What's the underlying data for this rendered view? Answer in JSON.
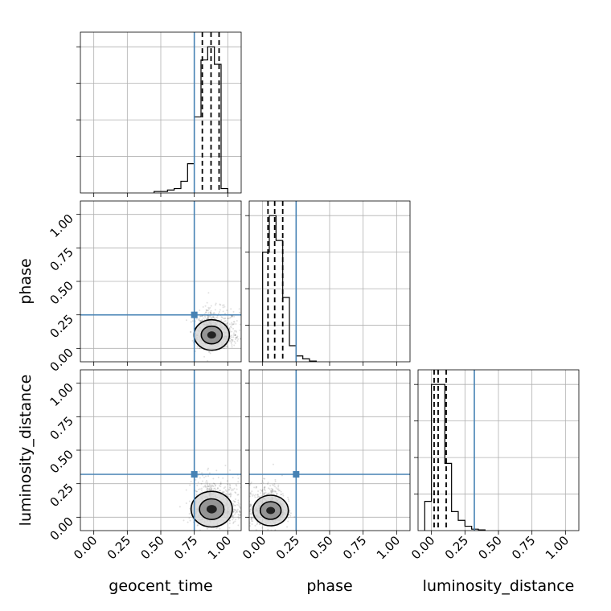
{
  "chart_data": {
    "type": "corner",
    "parameters": [
      "geocent_time",
      "phase",
      "luminosity_distance"
    ],
    "axis_range": [
      -0.1,
      1.1
    ],
    "ticks": [
      0.0,
      0.25,
      0.5,
      0.75,
      1.0
    ],
    "tick_labels": [
      "0.00",
      "0.25",
      "0.50",
      "0.75",
      "1.00"
    ],
    "grid": true,
    "truths": {
      "geocent_time": 0.75,
      "phase": 0.25,
      "luminosity_distance": 0.32
    },
    "quantiles": {
      "geocent_time": [
        0.81,
        0.875,
        0.935
      ],
      "phase": [
        0.04,
        0.09,
        0.15
      ],
      "luminosity_distance": [
        0.02,
        0.05,
        0.11
      ]
    },
    "histograms": {
      "geocent_time": {
        "bins": [
          0.45,
          0.5,
          0.55,
          0.6,
          0.65,
          0.7,
          0.75,
          0.8,
          0.85,
          0.9,
          0.95,
          1.0
        ],
        "counts": [
          0.01,
          0.01,
          0.02,
          0.03,
          0.08,
          0.2,
          0.52,
          0.91,
          1.0,
          0.88,
          0.03
        ],
        "ymax": 1.1
      },
      "phase": {
        "bins": [
          0.0,
          0.05,
          0.1,
          0.15,
          0.2,
          0.25,
          0.3,
          0.35,
          0.4
        ],
        "counts": [
          0.75,
          1.0,
          0.83,
          0.44,
          0.11,
          0.04,
          0.02,
          0.005
        ],
        "ymax": 1.1
      },
      "luminosity_distance": {
        "bins": [
          -0.05,
          0.0,
          0.05,
          0.1,
          0.15,
          0.2,
          0.25,
          0.3,
          0.35,
          0.4
        ],
        "counts": [
          0.2,
          1.0,
          1.0,
          0.46,
          0.13,
          0.07,
          0.03,
          0.01,
          0.005
        ],
        "ymax": 1.1
      }
    },
    "joint": {
      "geocent_time__phase": {
        "center": [
          0.88,
          0.1
        ],
        "spread": [
          0.06,
          0.06
        ]
      },
      "geocent_time__luminosity_distance": {
        "center": [
          0.88,
          0.06
        ],
        "spread": [
          0.07,
          0.07
        ]
      },
      "phase__luminosity_distance": {
        "center": [
          0.06,
          0.05
        ],
        "spread": [
          0.06,
          0.06
        ]
      }
    },
    "colors": {
      "truth": "#4682b4",
      "grid": "#b0b0b0",
      "hist": "#000000",
      "points": "#000000"
    }
  }
}
